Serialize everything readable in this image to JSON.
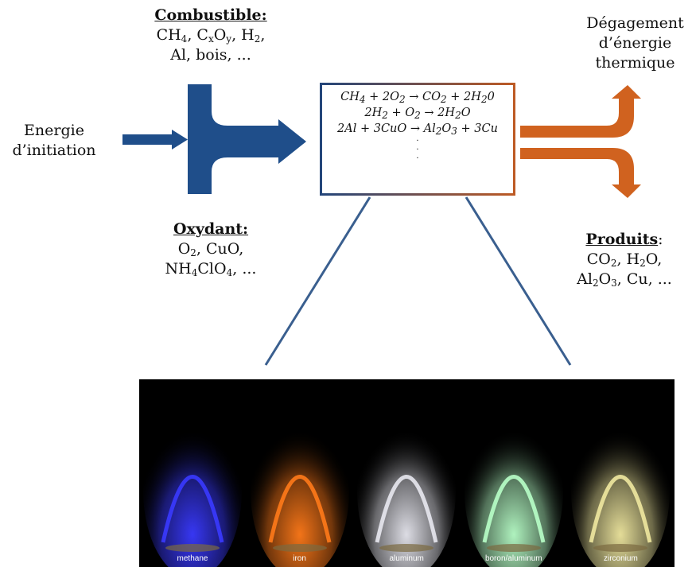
{
  "combustible": {
    "title": "Combustible:",
    "line1_parts": [
      "CH",
      "4",
      ", C",
      "x",
      "O",
      "y",
      ", H",
      "2",
      ","
    ],
    "line2": "Al, bois, ..."
  },
  "energie_initiation": {
    "line1": "Energie",
    "line2": "d’initiation"
  },
  "oxydant": {
    "title": "Oxydant:",
    "line1_parts": [
      "O",
      "2",
      ", CuO,"
    ],
    "line2_parts": [
      "NH",
      "4",
      "ClO",
      "4",
      ", ..."
    ]
  },
  "degagement": {
    "line1": "Dégagement",
    "line2": "d’énergie",
    "line3": "thermique"
  },
  "produits": {
    "title": "Produits",
    "colon": ":",
    "line1_parts": [
      "CO",
      "2",
      ", H",
      "2",
      "O,"
    ],
    "line2_parts": [
      "Al",
      "2",
      "O",
      "3",
      ", Cu, ..."
    ]
  },
  "reactions": {
    "eq1_parts": [
      "CH",
      "4",
      " + 2O",
      "2",
      " → CO",
      "2",
      " + 2H",
      "2",
      "0"
    ],
    "eq2_parts": [
      "2H",
      "2",
      " + O",
      "2",
      " → 2H",
      "2",
      "O"
    ],
    "eq3_parts": [
      "2Al + 3CuO → Al",
      "2",
      "O",
      "3",
      " + 3Cu"
    ],
    "dots": "·"
  },
  "flames": [
    {
      "label": "methane",
      "color": "#3a3aff"
    },
    {
      "label": "iron",
      "color": "#ff7a1a"
    },
    {
      "label": "aluminum",
      "color": "#e8e8f0"
    },
    {
      "label": "boron/aluminum",
      "color": "#b8ffc8"
    },
    {
      "label": "zirconium",
      "color": "#f0e8a0"
    }
  ],
  "colors": {
    "blue": "#1f4e8a",
    "orange": "#d0621f",
    "line": "#3a5f8f"
  }
}
